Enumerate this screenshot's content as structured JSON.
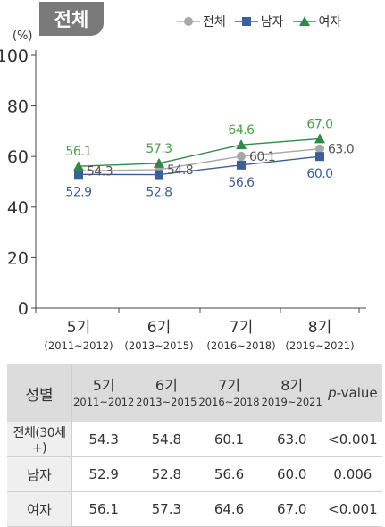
{
  "tab_label": "전체",
  "legend": [
    {
      "label": "전체",
      "color": "#a8a8a8",
      "marker": "circle"
    },
    {
      "label": "남자",
      "color": "#3a5f9a",
      "marker": "square"
    },
    {
      "label": "여자",
      "color": "#2f8a4a",
      "marker": "triangle"
    }
  ],
  "chart_data": {
    "type": "line",
    "ylabel": "(%)",
    "ylim": [
      0,
      100
    ],
    "yticks": [
      0,
      20,
      40,
      60,
      80,
      100
    ],
    "categories": [
      "5기",
      "6기",
      "7기",
      "8기"
    ],
    "category_sub": [
      "(2011~2012)",
      "(2013~2015)",
      "(2016~2018)",
      "(2019~2021)"
    ],
    "series": [
      {
        "name": "전체",
        "values": [
          54.3,
          54.8,
          60.1,
          63.0
        ],
        "color": "#a8a8a8",
        "label_color": "#555555",
        "marker": "circle"
      },
      {
        "name": "남자",
        "values": [
          52.9,
          52.8,
          56.6,
          60.0
        ],
        "color": "#3a5f9a",
        "label_color": "#3a5f9a",
        "marker": "square"
      },
      {
        "name": "여자",
        "values": [
          56.1,
          57.3,
          64.6,
          67.0
        ],
        "color": "#2f8a4a",
        "label_color": "#4aa04a",
        "marker": "triangle"
      }
    ]
  },
  "table": {
    "header_first": "성별",
    "header_cols": [
      {
        "top": "5기",
        "bottom": "2011~2012"
      },
      {
        "top": "6기",
        "bottom": "2013~2015"
      },
      {
        "top": "7기",
        "bottom": "2016~2018"
      },
      {
        "top": "8기",
        "bottom": "2019~2021"
      }
    ],
    "header_p_italic": "p",
    "header_p_rest": "-value",
    "rows": [
      {
        "label": "전체(30세+)",
        "values": [
          "54.3",
          "54.8",
          "60.1",
          "63.0"
        ],
        "p": "<0.001"
      },
      {
        "label": "남자",
        "values": [
          "52.9",
          "52.8",
          "56.6",
          "60.0"
        ],
        "p": "0.006"
      },
      {
        "label": "여자",
        "values": [
          "56.1",
          "57.3",
          "64.6",
          "67.0"
        ],
        "p": "<0.001"
      }
    ]
  }
}
